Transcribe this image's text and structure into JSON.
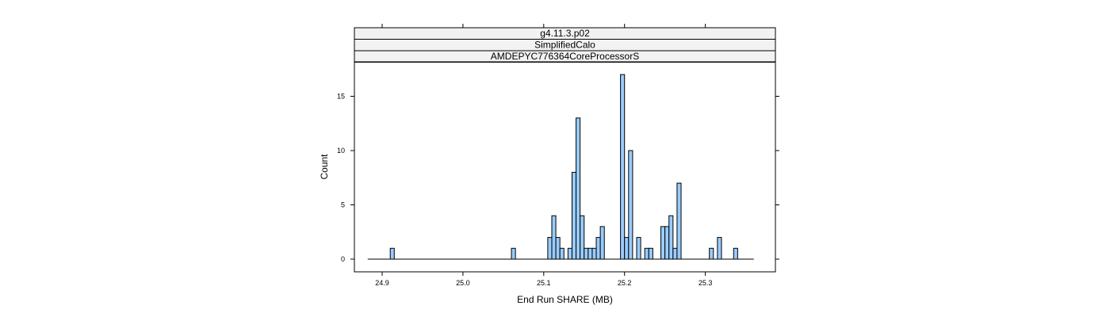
{
  "chart_data": {
    "type": "bar",
    "strips": [
      "g4.11.3.p02",
      "SimplifiedCalo",
      "AMDEPYC776364CoreProcessorS"
    ],
    "xlabel": "End Run SHARE (MB)",
    "ylabel": "Count",
    "xlim": [
      24.89,
      25.36
    ],
    "ylim": [
      0,
      17
    ],
    "xticks": [
      24.9,
      25.0,
      25.1,
      25.2,
      25.3
    ],
    "yticks": [
      0,
      5,
      10,
      15
    ],
    "bin_width": 0.005,
    "bins": [
      {
        "x": 24.91,
        "count": 1
      },
      {
        "x": 25.06,
        "count": 1
      },
      {
        "x": 25.105,
        "count": 2
      },
      {
        "x": 25.11,
        "count": 4
      },
      {
        "x": 25.115,
        "count": 2
      },
      {
        "x": 25.12,
        "count": 1
      },
      {
        "x": 25.13,
        "count": 1
      },
      {
        "x": 25.135,
        "count": 8
      },
      {
        "x": 25.14,
        "count": 13
      },
      {
        "x": 25.145,
        "count": 4
      },
      {
        "x": 25.15,
        "count": 1
      },
      {
        "x": 25.155,
        "count": 1
      },
      {
        "x": 25.16,
        "count": 1
      },
      {
        "x": 25.165,
        "count": 2
      },
      {
        "x": 25.17,
        "count": 3
      },
      {
        "x": 25.195,
        "count": 17
      },
      {
        "x": 25.2,
        "count": 2
      },
      {
        "x": 25.205,
        "count": 10
      },
      {
        "x": 25.215,
        "count": 2
      },
      {
        "x": 25.225,
        "count": 1
      },
      {
        "x": 25.23,
        "count": 1
      },
      {
        "x": 25.245,
        "count": 3
      },
      {
        "x": 25.25,
        "count": 3
      },
      {
        "x": 25.255,
        "count": 4
      },
      {
        "x": 25.26,
        "count": 1
      },
      {
        "x": 25.265,
        "count": 7
      },
      {
        "x": 25.305,
        "count": 1
      },
      {
        "x": 25.315,
        "count": 2
      },
      {
        "x": 25.335,
        "count": 1
      }
    ],
    "bar_color": "#99ccff",
    "strip_color": "#f2f2f2",
    "grid": false
  }
}
